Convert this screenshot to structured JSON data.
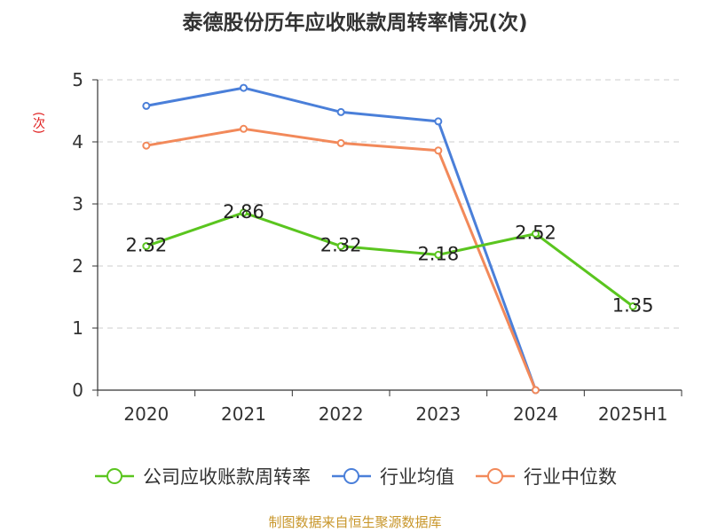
{
  "chart_data": {
    "type": "line",
    "title": "泰德股份历年应收账款周转率情况(次)",
    "ylabel": "(次)",
    "xlabel": "",
    "categories": [
      "2020",
      "2021",
      "2022",
      "2023",
      "2024",
      "2025H1"
    ],
    "ylim": [
      0,
      5
    ],
    "yticks": [
      0,
      1,
      2,
      3,
      4,
      5
    ],
    "grid": true,
    "legend_position": "bottom",
    "series": [
      {
        "name": "公司应收账款周转率",
        "color": "#5ac51f",
        "values": [
          2.32,
          2.86,
          2.32,
          2.18,
          2.52,
          1.35
        ],
        "labels": [
          "2.32",
          "2.86",
          "2.32",
          "2.18",
          "2.52",
          "1.35"
        ]
      },
      {
        "name": "行业均值",
        "color": "#4a7fd9",
        "values": [
          4.58,
          4.87,
          4.48,
          4.33,
          0,
          null
        ]
      },
      {
        "name": "行业中位数",
        "color": "#f2895a",
        "values": [
          3.94,
          4.21,
          3.98,
          3.86,
          0,
          null
        ]
      }
    ]
  },
  "source": "制图数据来自恒生聚源数据库"
}
